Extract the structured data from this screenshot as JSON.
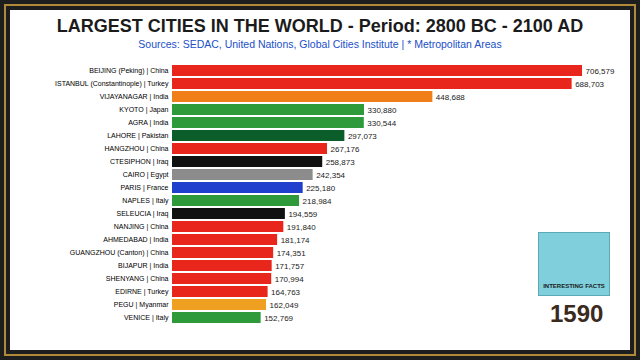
{
  "chart_data": {
    "type": "bar",
    "orientation": "horizontal",
    "title": "LARGEST CITIES IN THE WORLD - Period: 2800 BC - 2100 AD",
    "subtitle": "Sources: SEDAC, United Nations, Global Cities Institute | * Metropolitan Areas",
    "categories": [
      "BEIJING (Peking) | China",
      "ISTANBUL (Constantinople) | Turkey",
      "VIJAYANAGAR | India",
      "KYOTO | Japan",
      "AGRA | India",
      "LAHORE | Pakistan",
      "HANGZHOU | China",
      "CTESIPHON | Iraq",
      "CAIRO | Egypt",
      "PARIS | France",
      "NAPLES | Italy",
      "SELEUCIA | Iraq",
      "NANJING | China",
      "AHMEDABAD | India",
      "GUANGZHOU (Canton) | China",
      "BIJAPUR | India",
      "SHENYANG | China",
      "EDIRNE | Turkey",
      "PEGU | Myanmar",
      "VENICE | Italy"
    ],
    "values": [
      706579,
      688703,
      448688,
      330880,
      330544,
      297073,
      267176,
      258873,
      242354,
      225180,
      218984,
      194559,
      191840,
      181174,
      174351,
      171757,
      170994,
      164763,
      162049,
      152769
    ],
    "value_labels": [
      "706,579",
      "688,703",
      "448,688",
      "330,880",
      "330,544",
      "297,073",
      "267,176",
      "258,873",
      "242,354",
      "225,180",
      "218,984",
      "194,559",
      "191,840",
      "181,174",
      "174,351",
      "171,757",
      "170,994",
      "164,763",
      "162,049",
      "152,769"
    ],
    "colors": [
      "#e8261c",
      "#e8261c",
      "#f07f1a",
      "#2e9a3a",
      "#2e9a3a",
      "#0b5e2a",
      "#e8261c",
      "#111111",
      "#8c8c8c",
      "#1f3fcc",
      "#2e9a3a",
      "#111111",
      "#e8261c",
      "#e8261c",
      "#e8261c",
      "#e8261c",
      "#e8261c",
      "#e8261c",
      "#f0a020",
      "#2e9a3a"
    ],
    "xlim": [
      0,
      706579
    ],
    "data_labels": true,
    "tick_labels": "y",
    "grid": false,
    "annotations": [
      "INTERESTING FACTS",
      "1590"
    ]
  }
}
